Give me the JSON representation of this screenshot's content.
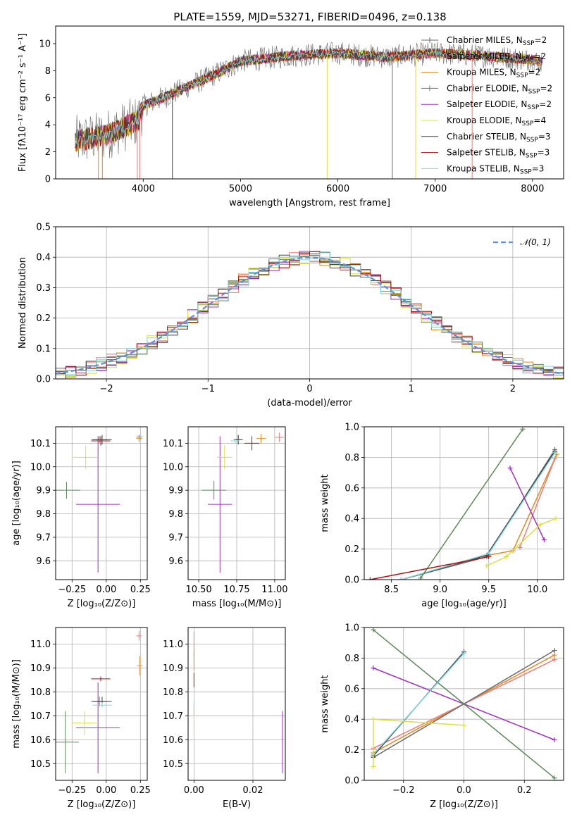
{
  "figure": {
    "title": "PLATE=1559, MJD=53271, FIBERID=0496, z=0.138"
  },
  "series_styles": [
    {
      "name": "Chabrier MILES",
      "nssp": "2",
      "color": "#6a6a6a"
    },
    {
      "name": "Salpeter MILES",
      "nssp": "2",
      "color": "#f07c7c"
    },
    {
      "name": "Kroupa MILES",
      "nssp": "2",
      "color": "#e08a1e"
    },
    {
      "name": "Chabrier ELODIE",
      "nssp": "2",
      "color": "#5a8a5a"
    },
    {
      "name": "Salpeter ELODIE",
      "nssp": "2",
      "color": "#a030c0"
    },
    {
      "name": "Kroupa ELODIE",
      "nssp": "4",
      "color": "#d8e040"
    },
    {
      "name": "Chabrier STELIB",
      "nssp": "3",
      "color": "#404040"
    },
    {
      "name": "Salpeter STELIB",
      "nssp": "3",
      "color": "#b01010"
    },
    {
      "name": "Kroupa STELIB",
      "nssp": "3",
      "color": "#80d8e0"
    }
  ],
  "chart_data": [
    {
      "id": "spectrum",
      "type": "line",
      "title": "PLATE=1559, MJD=53271, FIBERID=0496, z=0.138",
      "xlabel": "wavelength [Angstrom, rest frame]",
      "ylabel": "Flux [fλ10⁻¹⁷ erg cm⁻² s⁻¹ A⁻¹]",
      "xlim": [
        3100,
        8320
      ],
      "ylim": [
        0,
        11.3
      ],
      "xticks": [
        4000,
        5000,
        6000,
        7000,
        8000
      ],
      "yticks": [
        0,
        2,
        4,
        6,
        8,
        10
      ],
      "grid": false,
      "legend_position": "top-right",
      "continuum_x": [
        3300,
        3600,
        3950,
        4000,
        4300,
        4700,
        5000,
        5500,
        6000,
        6500,
        7000,
        7500,
        8000,
        8100
      ],
      "continuum_y": [
        2.8,
        3.2,
        4.3,
        5.4,
        6.3,
        7.6,
        8.7,
        9.1,
        9.3,
        9.0,
        9.3,
        9.1,
        8.8,
        8.6
      ]
    },
    {
      "id": "residual-hist",
      "type": "area",
      "xlabel": "(data-model)/error",
      "ylabel": "Normed distribution",
      "xlim": [
        -2.5,
        2.5
      ],
      "ylim": [
        0,
        0.5
      ],
      "xticks": [
        -2,
        -1,
        0,
        1,
        2
      ],
      "yticks": [
        0.0,
        0.1,
        0.2,
        0.3,
        0.4,
        0.5
      ],
      "grid": true,
      "legend_position": "top-right",
      "legend_label": "𝒩(0, 1)",
      "gaussian_color": "#5b8fd6",
      "bin_width": 0.1
    },
    {
      "id": "age-vs-Z",
      "type": "scatter",
      "xlabel": "Z [log₁₀(Z/Z⊙)]",
      "ylabel": "age  [log₁₀(age/yr)]",
      "xlim": [
        -0.37,
        0.3
      ],
      "ylim": [
        9.52,
        10.17
      ],
      "xticks": [
        -0.25,
        0.0,
        0.25
      ],
      "yticks": [
        9.6,
        9.7,
        9.8,
        9.9,
        10.0,
        10.1
      ],
      "grid": true,
      "points": [
        {
          "series": 0,
          "x": -0.05,
          "y": 10.115,
          "xerr": 0.06,
          "yerr": 0.015
        },
        {
          "series": 1,
          "x": 0.24,
          "y": 10.125,
          "xerr": 0.02,
          "yerr": 0.01
        },
        {
          "series": 2,
          "x": 0.24,
          "y": 10.12,
          "xerr": 0.02,
          "yerr": 0.015
        },
        {
          "series": 3,
          "x": -0.29,
          "y": 9.9,
          "xerr": 0.1,
          "yerr": 0.035
        },
        {
          "series": 4,
          "x": -0.06,
          "y": 9.84,
          "xerr": 0.16,
          "yerr": 0.29
        },
        {
          "series": 5,
          "x": -0.15,
          "y": 10.04,
          "xerr": 0.09,
          "yerr": 0.05
        },
        {
          "series": 6,
          "x": -0.03,
          "y": 10.115,
          "xerr": 0.07,
          "yerr": 0.02
        },
        {
          "series": 7,
          "x": -0.04,
          "y": 10.11,
          "xerr": 0.07,
          "yerr": 0.02
        },
        {
          "series": 8,
          "x": 0.245,
          "y": 10.13,
          "xerr": 0.02,
          "yerr": 0.005
        }
      ]
    },
    {
      "id": "age-vs-mass",
      "type": "scatter",
      "xlabel": "mass [log₁₀(M/M⊙)]",
      "ylabel": "",
      "xlim": [
        10.43,
        11.07
      ],
      "ylim": [
        9.52,
        10.17
      ],
      "xticks": [
        10.5,
        10.75,
        11.0
      ],
      "yticks": [
        9.6,
        9.7,
        9.8,
        9.9,
        10.0,
        10.1
      ],
      "grid": true,
      "points": [
        {
          "series": 0,
          "x": 10.76,
          "y": 10.115,
          "xerr": 0.02,
          "yerr": 0.02
        },
        {
          "series": 1,
          "x": 11.03,
          "y": 10.125,
          "xerr": 0.03,
          "yerr": 0.02
        },
        {
          "series": 2,
          "x": 10.91,
          "y": 10.12,
          "xerr": 0.03,
          "yerr": 0.02
        },
        {
          "series": 3,
          "x": 10.6,
          "y": 9.9,
          "xerr": 0.08,
          "yerr": 0.04
        },
        {
          "series": 4,
          "x": 10.64,
          "y": 9.84,
          "xerr": 0.08,
          "yerr": 0.29
        },
        {
          "series": 5,
          "x": 10.67,
          "y": 10.04,
          "xerr": 0.05,
          "yerr": 0.05
        },
        {
          "series": 6,
          "x": 10.76,
          "y": 10.115,
          "xerr": 0.03,
          "yerr": 0.02
        },
        {
          "series": 7,
          "x": 10.85,
          "y": 10.1,
          "xerr": 0.05,
          "yerr": 0.03
        },
        {
          "series": 8,
          "x": 10.74,
          "y": 10.11,
          "xerr": 0.03,
          "yerr": 0.01
        }
      ]
    },
    {
      "id": "massweight-vs-age",
      "type": "line",
      "xlabel": "age  [log₁₀(age/yr)]",
      "ylabel": "mass weight",
      "xlim": [
        8.22,
        10.27
      ],
      "ylim": [
        0.0,
        1.0
      ],
      "xticks": [
        8.5,
        9.0,
        9.5,
        10.0
      ],
      "yticks": [
        0.0,
        0.2,
        0.4,
        0.6,
        0.8,
        1.0
      ],
      "grid": true,
      "lines": [
        {
          "series": 2,
          "x": [
            9.5,
            9.75,
            10.2
          ],
          "y": [
            0.16,
            0.19,
            0.82
          ]
        },
        {
          "series": 1,
          "x": [
            9.82,
            10.18
          ],
          "y": [
            0.21,
            0.79
          ]
        },
        {
          "series": 0,
          "x": [
            8.6,
            9.48,
            10.18
          ],
          "y": [
            0.0,
            0.15,
            0.85
          ]
        },
        {
          "series": 6,
          "x": [
            8.6,
            9.48,
            10.18
          ],
          "y": [
            0.0,
            0.16,
            0.84
          ]
        },
        {
          "series": 8,
          "x": [
            8.6,
            9.5,
            10.18
          ],
          "y": [
            0.0,
            0.17,
            0.83
          ]
        },
        {
          "series": 4,
          "x": [
            9.72,
            10.07
          ],
          "y": [
            0.73,
            0.26
          ]
        },
        {
          "series": 5,
          "x": [
            9.48,
            9.68,
            10.03,
            10.19
          ],
          "y": [
            0.09,
            0.15,
            0.36,
            0.4
          ]
        },
        {
          "series": 3,
          "x": [
            8.8,
            9.85
          ],
          "y": [
            0.01,
            0.985
          ]
        },
        {
          "series": 7,
          "x": [
            8.28,
            9.5
          ],
          "y": [
            0.0,
            0.15
          ]
        }
      ]
    },
    {
      "id": "mass-vs-Z",
      "type": "scatter",
      "xlabel": "Z [log₁₀(Z/Z⊙)]",
      "ylabel": "mass [log₁₀(M/M⊙)]",
      "xlim": [
        -0.37,
        0.3
      ],
      "ylim": [
        10.43,
        11.07
      ],
      "xticks": [
        -0.25,
        0.0,
        0.25
      ],
      "yticks": [
        10.5,
        10.6,
        10.7,
        10.8,
        10.9,
        11.0
      ],
      "grid": true,
      "points": [
        {
          "series": 0,
          "x": -0.05,
          "y": 10.76,
          "xerr": 0.06,
          "yerr": 0.02
        },
        {
          "series": 1,
          "x": 0.24,
          "y": 11.035,
          "xerr": 0.02,
          "yerr": 0.02
        },
        {
          "series": 2,
          "x": 0.245,
          "y": 10.91,
          "xerr": 0.02,
          "yerr": 0.04
        },
        {
          "series": 3,
          "x": -0.3,
          "y": 10.59,
          "xerr": 0.1,
          "yerr": 0.13
        },
        {
          "series": 4,
          "x": -0.06,
          "y": 10.65,
          "xerr": 0.16,
          "yerr": 0.19
        },
        {
          "series": 5,
          "x": -0.16,
          "y": 10.67,
          "xerr": 0.09,
          "yerr": 0.05
        },
        {
          "series": 6,
          "x": -0.03,
          "y": 10.76,
          "xerr": 0.07,
          "yerr": 0.02
        },
        {
          "series": 7,
          "x": -0.04,
          "y": 10.855,
          "xerr": 0.07,
          "yerr": 0.01
        },
        {
          "series": 8,
          "x": -0.03,
          "y": 10.745,
          "xerr": 0.07,
          "yerr": 0.01
        }
      ]
    },
    {
      "id": "mass-vs-ebv",
      "type": "scatter",
      "xlabel": "E(B-V)",
      "ylabel": "",
      "xlim": [
        -0.002,
        0.031
      ],
      "ylim": [
        10.43,
        11.07
      ],
      "xticks": [
        0.0,
        0.02
      ],
      "yticks": [
        10.5,
        10.6,
        10.7,
        10.8,
        10.9,
        11.0
      ],
      "grid": true,
      "points": [
        {
          "series": 1,
          "x": 0.0,
          "y": 11.0,
          "xerr": 0,
          "yerr": 0.05
        },
        {
          "series": 2,
          "x": 0.0,
          "y": 10.93,
          "xerr": 0,
          "yerr": 0.04
        },
        {
          "series": 7,
          "x": 0.0,
          "y": 10.85,
          "xerr": 0,
          "yerr": 0.03
        },
        {
          "series": 5,
          "x": 0.0,
          "y": 10.68,
          "xerr": 0,
          "yerr": 0.06
        },
        {
          "series": 8,
          "x": 0.0,
          "y": 10.73,
          "xerr": 0,
          "yerr": 0.03
        },
        {
          "series": 4,
          "x": 0.03,
          "y": 10.59,
          "xerr": 0,
          "yerr": 0.13
        }
      ]
    },
    {
      "id": "massweight-vs-Z",
      "type": "line",
      "xlabel": "Z [log₁₀(Z/Z⊙)]",
      "ylabel": "mass weight",
      "xlim": [
        -0.33,
        0.33
      ],
      "ylim": [
        0.0,
        1.0
      ],
      "xticks": [
        -0.2,
        0.0,
        0.2
      ],
      "yticks": [
        0.0,
        0.2,
        0.4,
        0.6,
        0.8,
        1.0
      ],
      "grid": true,
      "lines": [
        {
          "series": 2,
          "x": [
            -0.3,
            0.3
          ],
          "y": [
            0.18,
            0.82
          ]
        },
        {
          "series": 1,
          "x": [
            -0.3,
            0.3
          ],
          "y": [
            0.21,
            0.79
          ]
        },
        {
          "series": 0,
          "x": [
            -0.3,
            0.3
          ],
          "y": [
            0.15,
            0.85
          ]
        },
        {
          "series": 4,
          "x": [
            -0.3,
            0.3
          ],
          "y": [
            0.735,
            0.265
          ]
        },
        {
          "series": 3,
          "x": [
            -0.3,
            0.3
          ],
          "y": [
            0.985,
            0.015
          ]
        },
        {
          "series": 6,
          "x": [
            -0.3,
            0.0
          ],
          "y": [
            0.16,
            0.84
          ]
        },
        {
          "series": 8,
          "x": [
            -0.3,
            0.0
          ],
          "y": [
            0.17,
            0.83
          ]
        },
        {
          "series": 5,
          "x": [
            -0.3,
            -0.3,
            0.0
          ],
          "y": [
            0.09,
            0.4,
            0.36
          ]
        }
      ]
    }
  ]
}
